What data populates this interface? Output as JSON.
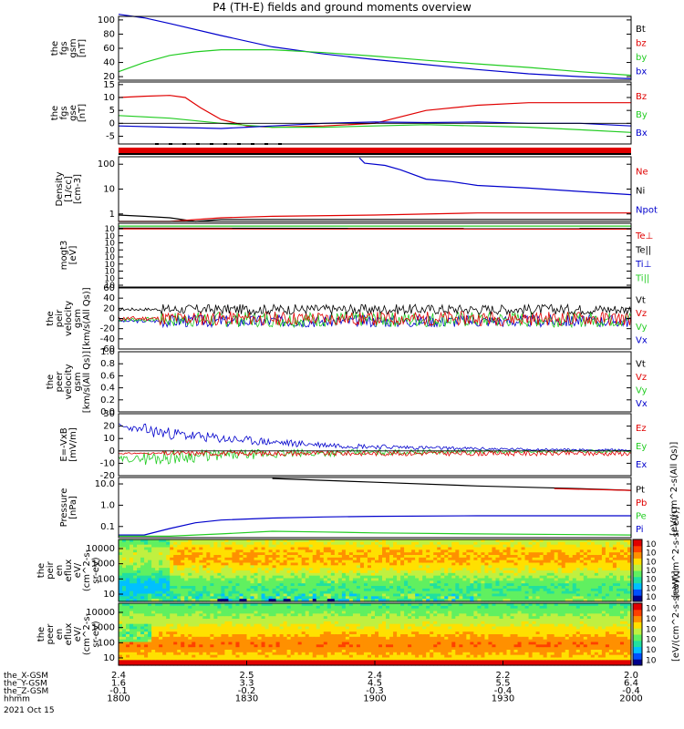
{
  "title": "P4 (TH-E) fields and ground moments overview",
  "colors": {
    "black": "#000000",
    "red": "#e00000",
    "green": "#22cc22",
    "blue": "#0000cc"
  },
  "chart_data": [
    {
      "type": "line",
      "id": "fgs_gsm",
      "ylabel": [
        "the",
        "fgs",
        "gsm",
        "[nT]"
      ],
      "ylim": [
        15,
        105
      ],
      "yticks": [
        "100",
        "80",
        "60",
        "40",
        "20"
      ],
      "ytick_values": [
        100,
        80,
        60,
        40,
        20
      ],
      "legend": [
        {
          "name": "Bt",
          "color": "#000000"
        },
        {
          "name": "bz",
          "color": "#e00000"
        },
        {
          "name": "by",
          "color": "#22cc22"
        },
        {
          "name": "bx",
          "color": "#0000cc"
        }
      ],
      "series": [
        {
          "name": "bx",
          "color": "#0000cc",
          "x": [
            0,
            0.05,
            0.1,
            0.2,
            0.3,
            0.4,
            0.5,
            0.6,
            0.7,
            0.8,
            0.9,
            1.0
          ],
          "values": [
            108,
            103,
            95,
            78,
            62,
            52,
            44,
            37,
            30,
            24,
            20,
            17
          ]
        },
        {
          "name": "by",
          "color": "#22cc22",
          "x": [
            0,
            0.05,
            0.1,
            0.15,
            0.2,
            0.3,
            0.4,
            0.5,
            0.6,
            0.7,
            0.8,
            0.9,
            1.0
          ],
          "values": [
            27,
            40,
            50,
            55,
            58,
            58,
            54,
            49,
            43,
            38,
            33,
            27,
            22
          ]
        }
      ]
    },
    {
      "type": "line",
      "id": "fgs_gse",
      "ylabel": [
        "the",
        "fgs",
        "gse",
        "[nT]"
      ],
      "ylim": [
        -8,
        16
      ],
      "yticks": [
        "15",
        "10",
        "5",
        "0",
        "-5"
      ],
      "ytick_values": [
        15,
        10,
        5,
        0,
        -5
      ],
      "legend": [
        {
          "name": "Bz",
          "color": "#e00000"
        },
        {
          "name": "By",
          "color": "#22cc22"
        },
        {
          "name": "Bx",
          "color": "#0000cc"
        }
      ],
      "series": [
        {
          "name": "Bz",
          "color": "#e00000",
          "x": [
            0,
            0.05,
            0.1,
            0.13,
            0.16,
            0.2,
            0.25,
            0.3,
            0.4,
            0.5,
            0.6,
            0.7,
            0.8,
            0.9,
            1.0
          ],
          "values": [
            10,
            10.5,
            10.8,
            10,
            6,
            1.5,
            -1,
            -1.5,
            -1,
            0,
            5,
            7,
            8,
            8,
            8
          ]
        },
        {
          "name": "By",
          "color": "#22cc22",
          "x": [
            0,
            0.1,
            0.2,
            0.3,
            0.4,
            0.5,
            0.6,
            0.7,
            0.8,
            0.9,
            1.0
          ],
          "values": [
            3,
            2,
            0,
            -1.5,
            -1.5,
            -1,
            -0.5,
            -1,
            -1.5,
            -2.5,
            -3.5
          ]
        },
        {
          "name": "Bx",
          "color": "#0000cc",
          "x": [
            0,
            0.1,
            0.2,
            0.25,
            0.3,
            0.4,
            0.5,
            0.6,
            0.7,
            0.8,
            0.9,
            1.0
          ],
          "values": [
            -1,
            -1.5,
            -2,
            -1.5,
            -1,
            0,
            0.5,
            0.3,
            0.5,
            0,
            0,
            -1
          ]
        }
      ]
    },
    {
      "type": "line",
      "id": "density",
      "log": true,
      "ylabel": [
        "Density",
        "[1/cc]",
        "[cm-3]"
      ],
      "ylim": [
        0.5,
        200
      ],
      "yticks": [
        "100",
        "10",
        "1"
      ],
      "ytick_values": [
        100,
        10,
        1
      ],
      "legend": [
        {
          "name": "Ne",
          "color": "#e00000"
        },
        {
          "name": "Ni",
          "color": "#000000"
        },
        {
          "name": "Npot",
          "color": "#0000cc"
        }
      ],
      "series": [
        {
          "name": "Ni",
          "color": "#000000",
          "x": [
            0,
            0.05,
            0.1,
            0.15,
            0.2,
            1.0
          ],
          "values": [
            0.9,
            0.8,
            0.7,
            0.5,
            0.6,
            0.6
          ]
        },
        {
          "name": "Ne",
          "color": "#e00000",
          "x": [
            0,
            0.1,
            0.2,
            0.3,
            0.5,
            0.7,
            1.0
          ],
          "values": [
            0.5,
            0.5,
            0.7,
            0.8,
            0.9,
            1.1,
            1.1
          ]
        },
        {
          "name": "Npot",
          "color": "#0000cc",
          "x": [
            0.47,
            0.48,
            0.52,
            0.55,
            0.6,
            0.65,
            0.7,
            0.8,
            0.9,
            1.0
          ],
          "values": [
            180,
            110,
            90,
            60,
            25,
            20,
            14,
            11,
            8,
            6
          ]
        }
      ]
    },
    {
      "type": "line",
      "id": "temperature",
      "log": true,
      "ylabel": [
        "mogt3",
        "[eV]"
      ],
      "ylim": [
        1e-08,
        10000.0
      ],
      "yticks": [
        "10",
        "10",
        "10",
        "10",
        "10",
        "10",
        "10",
        "10",
        "10"
      ],
      "ytick_values": [
        10000.0,
        100.0,
        1.0,
        0.01,
        0.0001,
        1e-06,
        1e-08
      ],
      "legend": [
        {
          "name": "Te⊥",
          "color": "#e00000"
        },
        {
          "name": "Te||",
          "color": "#000000"
        },
        {
          "name": "Ti⊥",
          "color": "#0000cc"
        },
        {
          "name": "Ti||",
          "color": "#22cc22"
        }
      ],
      "series": [
        {
          "name": "Ti||",
          "color": "#22cc22",
          "x": [
            0,
            1
          ],
          "values": [
            3000,
            3000
          ]
        },
        {
          "name": "Te||",
          "color": "#000000",
          "x": [
            0,
            1
          ],
          "values": [
            1200,
            1000
          ]
        },
        {
          "name": "Te⊥",
          "color": "#e00000",
          "x": [
            0,
            1
          ],
          "values": [
            900,
            800
          ]
        }
      ]
    },
    {
      "type": "line",
      "id": "peir_velocity",
      "ylabel": [
        "the",
        "peir",
        "velocity",
        "gsm",
        "[km/s(All Qs)]"
      ],
      "ylim": [
        -60,
        60
      ],
      "yticks": [
        "60",
        "40",
        "20",
        "0",
        "-20",
        "-40",
        "-60"
      ],
      "ytick_values": [
        60,
        40,
        20,
        0,
        -20,
        -40,
        -60
      ],
      "legend": [
        {
          "name": "Vt",
          "color": "#000000"
        },
        {
          "name": "Vz",
          "color": "#e00000"
        },
        {
          "name": "Vy",
          "color": "#22cc22"
        },
        {
          "name": "Vx",
          "color": "#0000cc"
        }
      ],
      "noise": [
        {
          "name": "Vx",
          "color": "#0000cc",
          "base": -5,
          "amp": 12,
          "seed": 3
        },
        {
          "name": "Vy",
          "color": "#22cc22",
          "base": -2,
          "amp": 15,
          "seed": 7
        },
        {
          "name": "Vz",
          "color": "#e00000",
          "base": 0,
          "amp": 14,
          "seed": 11
        },
        {
          "name": "Vt",
          "color": "#000000",
          "base": 18,
          "amp": 10,
          "seed": 17
        }
      ]
    },
    {
      "type": "line",
      "id": "peer_velocity",
      "ylabel": [
        "the",
        "peer",
        "velocity",
        "gsm",
        "[km/s(All Qs)]"
      ],
      "ylim": [
        0,
        1
      ],
      "yticks": [
        "1.0",
        "0.8",
        "0.6",
        "0.4",
        "0.2",
        "0.0"
      ],
      "ytick_values": [
        1.0,
        0.8,
        0.6,
        0.4,
        0.2,
        0.0
      ],
      "legend": [
        {
          "name": "Vt",
          "color": "#000000"
        },
        {
          "name": "Vz",
          "color": "#e00000"
        },
        {
          "name": "Vy",
          "color": "#22cc22"
        },
        {
          "name": "Vx",
          "color": "#0000cc"
        }
      ]
    },
    {
      "type": "line",
      "id": "efield",
      "ylabel": [
        "E=-VxB",
        "[mV/m]"
      ],
      "ylim": [
        -20,
        30
      ],
      "yticks": [
        "30",
        "20",
        "10",
        "0",
        "-10",
        "-20"
      ],
      "ytick_values": [
        30,
        20,
        10,
        0,
        -10,
        -20
      ],
      "legend": [
        {
          "name": "Ez",
          "color": "#e00000"
        },
        {
          "name": "Ey",
          "color": "#22cc22"
        },
        {
          "name": "Ex",
          "color": "#0000cc"
        }
      ],
      "noise": [
        {
          "name": "Ex",
          "color": "#0000cc",
          "base": 20,
          "amp": 6,
          "seed": 23,
          "decay": true
        },
        {
          "name": "Ey",
          "color": "#22cc22",
          "base": -7,
          "amp": 7,
          "seed": 29,
          "decay": true
        },
        {
          "name": "Ez",
          "color": "#e00000",
          "base": -2,
          "amp": 2,
          "seed": 31
        }
      ]
    },
    {
      "type": "line",
      "id": "pressure",
      "log": true,
      "ylabel": [
        "Pressure",
        "[nPa]"
      ],
      "ylim": [
        0.03,
        20
      ],
      "yticks": [
        "10.0",
        "1.0",
        "0.1"
      ],
      "ytick_values": [
        10,
        1,
        0.1
      ],
      "legend": [
        {
          "name": "Pt",
          "color": "#000000"
        },
        {
          "name": "Pb",
          "color": "#e00000"
        },
        {
          "name": "Pe",
          "color": "#22cc22"
        },
        {
          "name": "Pi",
          "color": "#0000cc"
        }
      ],
      "right_label": "[eV/(cm^2-s(All Qs)]",
      "series": [
        {
          "name": "Pt",
          "color": "#000000",
          "x": [
            0.3,
            0.5,
            0.7,
            0.9,
            1.0
          ],
          "values": [
            18,
            12,
            8,
            6,
            5
          ]
        },
        {
          "name": "Pb",
          "color": "#e00000",
          "x": [
            0.85,
            1.0
          ],
          "values": [
            6,
            5
          ]
        },
        {
          "name": "Pi",
          "color": "#0000cc",
          "x": [
            0,
            0.05,
            0.1,
            0.15,
            0.2,
            0.3,
            0.4,
            0.5,
            0.7,
            1.0
          ],
          "values": [
            0.04,
            0.04,
            0.08,
            0.15,
            0.2,
            0.25,
            0.28,
            0.3,
            0.32,
            0.32
          ]
        },
        {
          "name": "Pe",
          "color": "#22cc22",
          "x": [
            0,
            0.1,
            0.2,
            0.3,
            0.4,
            0.5,
            0.7,
            1.0
          ],
          "values": [
            0.035,
            0.035,
            0.045,
            0.06,
            0.055,
            0.05,
            0.045,
            0.04
          ]
        }
      ]
    },
    {
      "type": "heatmap",
      "id": "peir_eflux",
      "ylabel": [
        "the",
        "peir",
        "en",
        "eflux",
        "eV/",
        "(cm^2-s-",
        "sr-eV)"
      ],
      "yticks": [
        "10000",
        "1000",
        "100",
        "10"
      ],
      "colorbar_label": "[eV/(cm^2-s-sr-eV)]",
      "colorbar_ticks": [
        "10",
        "10",
        "10",
        "10",
        "10",
        "10",
        "10"
      ]
    },
    {
      "type": "heatmap",
      "id": "peer_eflux",
      "ylabel": [
        "the",
        "peer",
        "en",
        "eflux",
        "eV/",
        "(cm^2-s-",
        "sr-eV)"
      ],
      "yticks": [
        "10000",
        "1000",
        "100",
        "10"
      ],
      "colorbar_label": "[eV/(cm^2-s-sr-eV)]",
      "colorbar_ticks": [
        "10",
        "10",
        "10",
        "10",
        "10",
        "10"
      ]
    }
  ],
  "xaxis": {
    "rows": [
      {
        "label": "the_X-GSM",
        "values": [
          "2.4",
          "2.5",
          "2.4",
          "2.2",
          "2.0"
        ]
      },
      {
        "label": "the_Y-GSM",
        "values": [
          "1.6",
          "3.3",
          "4.5",
          "5.5",
          "6.4"
        ]
      },
      {
        "label": "the_Z-GSM",
        "values": [
          "-0.1",
          "-0.2",
          "-0.3",
          "-0.4",
          "-0.4"
        ]
      },
      {
        "label": "hhmm",
        "values": [
          "1800",
          "1830",
          "1900",
          "1930",
          "2000"
        ]
      }
    ],
    "date": "2021 Oct 15"
  }
}
